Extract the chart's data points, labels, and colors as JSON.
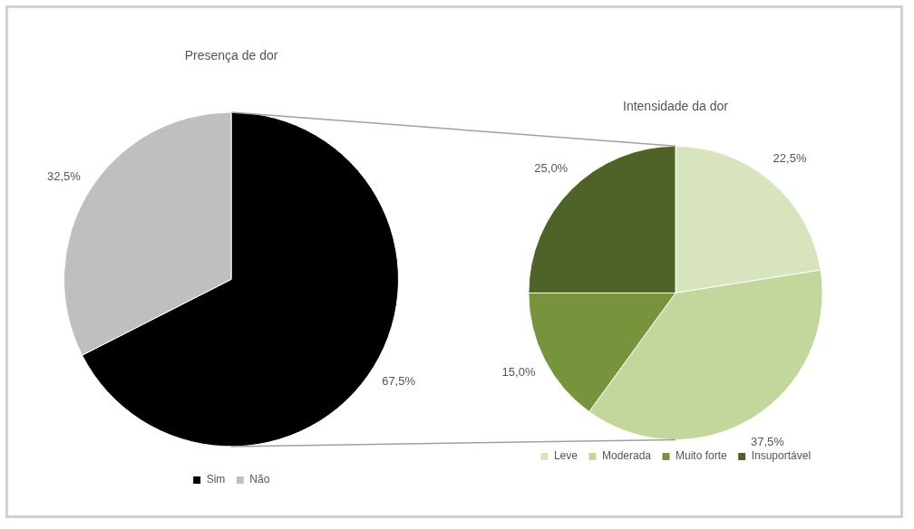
{
  "chart_data": [
    {
      "type": "pie",
      "title": "Presença de dor",
      "categories": [
        "Sim",
        "Não"
      ],
      "values": [
        67.5,
        32.5
      ],
      "colors": [
        "#000000",
        "#bfbfbf"
      ],
      "value_labels": [
        "67,5%",
        "32,5%"
      ],
      "legend": "bottom"
    },
    {
      "type": "pie",
      "title": "Intensidade da dor",
      "categories": [
        "Leve",
        "Moderada",
        "Muito forte",
        "Insuportável"
      ],
      "values": [
        22.5,
        37.5,
        15.0,
        25.0
      ],
      "colors": [
        "#d7e4bd",
        "#c3d69b",
        "#77933c",
        "#4f6228"
      ],
      "value_labels": [
        "22,5%",
        "37,5%",
        "15,0%",
        "25,0%"
      ],
      "legend": "bottom"
    }
  ]
}
